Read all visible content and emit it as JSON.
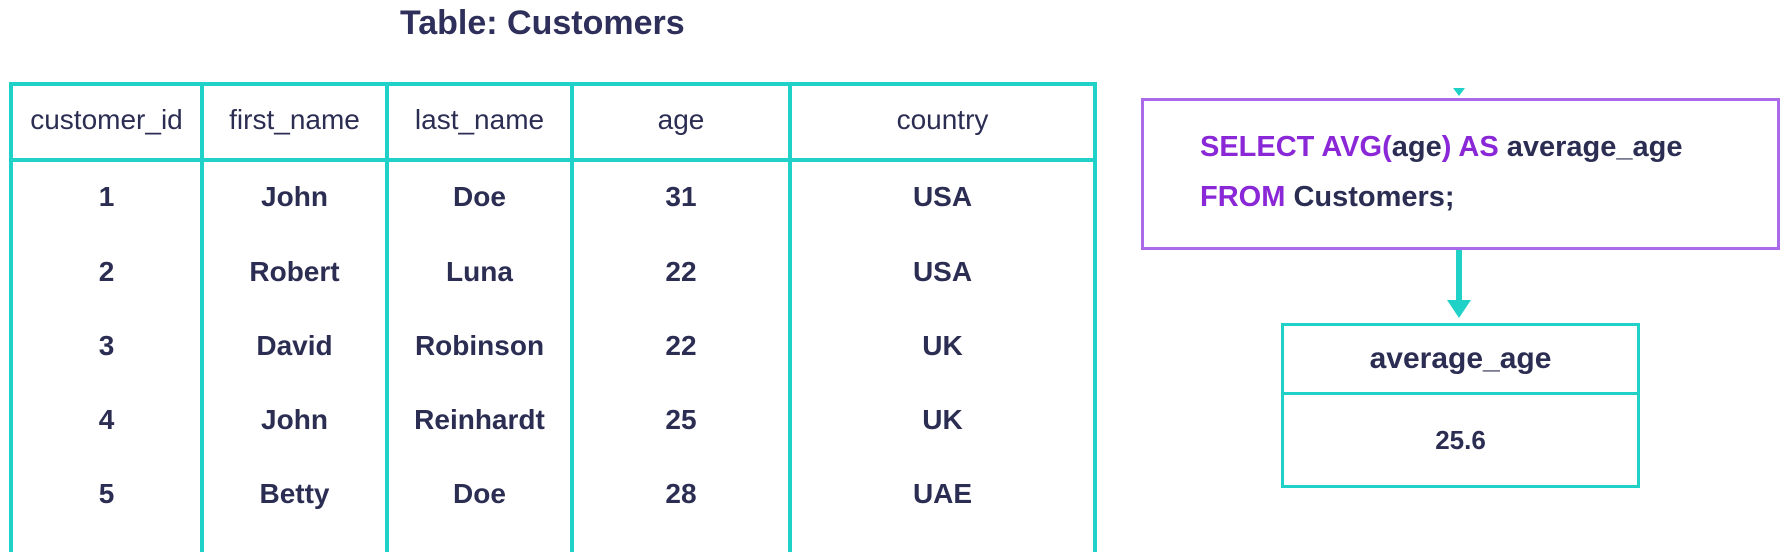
{
  "table": {
    "title": "Table: Customers",
    "columns": [
      "customer_id",
      "first_name",
      "last_name",
      "age",
      "country"
    ],
    "rows": [
      [
        "1",
        "John",
        "Doe",
        "31",
        "USA"
      ],
      [
        "2",
        "Robert",
        "Luna",
        "22",
        "USA"
      ],
      [
        "3",
        "David",
        "Robinson",
        "22",
        "UK"
      ],
      [
        "4",
        "John",
        "Reinhardt",
        "25",
        "UK"
      ],
      [
        "5",
        "Betty",
        "Doe",
        "28",
        "UAE"
      ]
    ]
  },
  "query": {
    "line1": {
      "kw1": "SELECT AVG",
      "paren_open": "(",
      "arg": "age",
      "paren_close": ")",
      "kw2": " AS ",
      "alias": "average_age"
    },
    "line2": {
      "kw": "FROM ",
      "table": "Customers;"
    }
  },
  "result": {
    "header": "average_age",
    "value": "25.6"
  },
  "colors": {
    "table_border": "#1fd1c6",
    "query_border": "#a96bea",
    "keyword": "#8a27d6",
    "text": "#2b2d52"
  }
}
